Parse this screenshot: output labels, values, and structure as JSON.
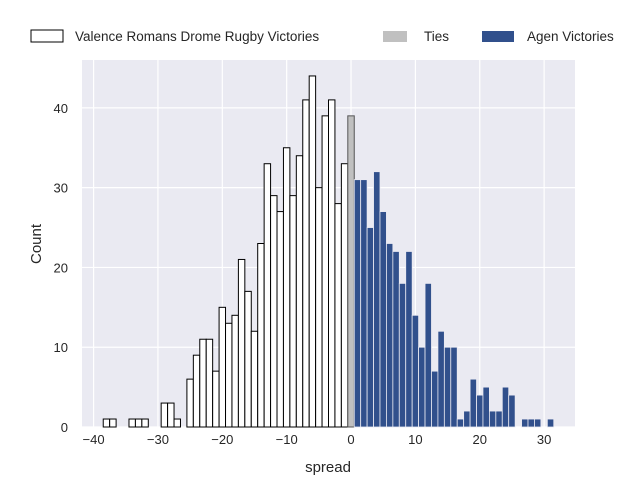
{
  "chart_data": {
    "type": "bar",
    "xlabel": "spread",
    "ylabel": "Count",
    "xlim": [
      -41.8,
      34.8
    ],
    "ylim": [
      0,
      46
    ],
    "xticks": [
      -40,
      -30,
      -20,
      -10,
      0,
      10,
      20,
      30
    ],
    "yticks": [
      0,
      10,
      20,
      30,
      40
    ],
    "grid": true,
    "legend_placement": "top, outside, horizontal",
    "background_color": "#eaeaf2",
    "series": [
      {
        "name": "Valence Romans Drome Rugby Victories",
        "color": "#ffffff",
        "edge_color": "#000000",
        "x": [
          -38,
          -37,
          -34,
          -33,
          -32,
          -29,
          -28,
          -27,
          -25,
          -24,
          -23,
          -22,
          -21,
          -20,
          -19,
          -18,
          -17,
          -16,
          -15,
          -14,
          -13,
          -12,
          -11,
          -10,
          -9,
          -8,
          -7,
          -6,
          -5,
          -4,
          -3,
          -2,
          -1
        ],
        "values": [
          1,
          1,
          1,
          1,
          1,
          3,
          3,
          1,
          6,
          9,
          11,
          11,
          7,
          15,
          13,
          14,
          21,
          17,
          12,
          23,
          33,
          29,
          27,
          35,
          29,
          34,
          41,
          44,
          30,
          39,
          41,
          28,
          33
        ]
      },
      {
        "name": "Ties",
        "color": "#c0c0c0",
        "edge_color": "#555555",
        "x": [
          0
        ],
        "values": [
          39
        ]
      },
      {
        "name": "Agen Victories",
        "color": "#31508c",
        "edge_color": "#eaeaf2",
        "x": [
          1,
          2,
          3,
          4,
          5,
          6,
          7,
          8,
          9,
          10,
          11,
          12,
          13,
          14,
          15,
          16,
          17,
          18,
          19,
          20,
          21,
          22,
          23,
          24,
          25,
          27,
          28,
          29,
          31
        ],
        "values": [
          31,
          31,
          25,
          32,
          27,
          23,
          22,
          18,
          22,
          14,
          10,
          18,
          7,
          12,
          10,
          10,
          1,
          2,
          6,
          4,
          5,
          2,
          2,
          5,
          4,
          1,
          1,
          1,
          1
        ]
      }
    ]
  }
}
